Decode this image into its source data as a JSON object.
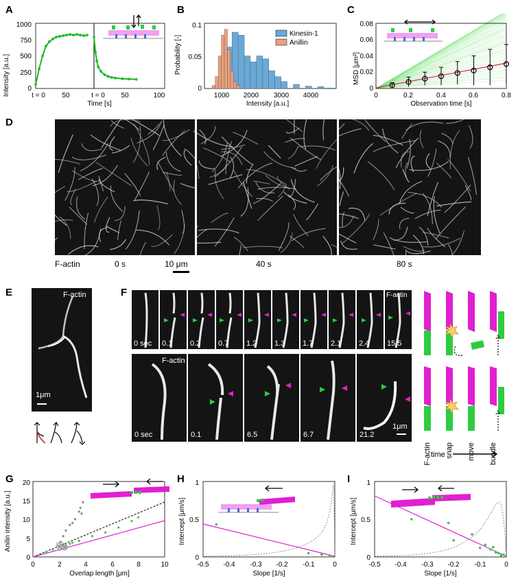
{
  "panel_letters": [
    "A",
    "B",
    "C",
    "D",
    "E",
    "F",
    "G",
    "H",
    "I"
  ],
  "colors": {
    "green": "#2ecc40",
    "magenta": "#e020d0",
    "blue": "#6aaad8",
    "salmon": "#e9a07f",
    "kinesin": "#3a78b0"
  },
  "panelA": {
    "ylabel": "Intensity [a.u.]",
    "xlabel": "Time [s]",
    "yticks": [
      "0",
      "250",
      "500",
      "750",
      "1000"
    ],
    "xticks": [
      "0",
      "50",
      "50",
      "100"
    ],
    "t0_left": "t = 0",
    "t0_right": "t = 0"
  },
  "panelB": {
    "ylabel": "Probability [-]",
    "xlabel": "Intensity [a.u.]",
    "yticks": [
      "0",
      "0.05",
      "0.1"
    ],
    "xticks": [
      "1000",
      "2000",
      "3000",
      "4000"
    ],
    "legend": [
      "Kinesin-1",
      "Anillin"
    ]
  },
  "panelC": {
    "ylabel": "MSD [μm²]",
    "xlabel": "Observation time [s]",
    "yticks": [
      "0",
      "0.02",
      "0.04",
      "0.06",
      "0.08"
    ],
    "xticks": [
      "0",
      "0.2",
      "0.4",
      "0.6",
      "0.8"
    ]
  },
  "panelD": {
    "label": "F-actin",
    "times": [
      "0 s",
      "40 s",
      "80 s"
    ],
    "scalebar": "10 μm"
  },
  "panelE": {
    "label": "F-actin",
    "scalebar": "1μm"
  },
  "panelF": {
    "label_top": "F-actin",
    "label_bottom": "F-actin",
    "top_times": [
      "0 sec",
      "0.1",
      "0.2",
      "0.7",
      "1.2",
      "1.3",
      "1.7",
      "2.1",
      "2.4",
      "15.5"
    ],
    "bottom_times": [
      "0 sec",
      "0.1",
      "6.5",
      "6.7",
      "21.2"
    ],
    "scalebar": "1μm",
    "steps": [
      "F-actin",
      "snap",
      "move",
      "bundle"
    ],
    "time_label": "time"
  },
  "panelG": {
    "ylabel": "Anilin intensity [a.u.]",
    "xlabel": "Overlap length [μm]",
    "yticks": [
      "0",
      "5",
      "10",
      "15",
      "20"
    ],
    "xticks": [
      "0",
      "2",
      "4",
      "6",
      "8",
      "10"
    ]
  },
  "panelH": {
    "ylabel": "Intercept [μm/s]",
    "xlabel": "Slope [1/s]",
    "yticks": [
      "0",
      "0.5",
      "1"
    ],
    "xticks": [
      "-0.5",
      "-0.4",
      "-0.3",
      "-0.2",
      "-0.1",
      "0"
    ]
  },
  "panelI": {
    "ylabel": "Intercept [μm/s]",
    "xlabel": "Slope [1/s]",
    "yticks": [
      "0",
      "0.5",
      "1"
    ],
    "xticks": [
      "-0.5",
      "-0.4",
      "-0.3",
      "-0.2",
      "-0.1",
      "0"
    ]
  },
  "chart_data": [
    {
      "type": "scatter",
      "panel": "A",
      "ylabel": "Intensity [a.u.]",
      "xlabel": "Time [s]",
      "ylim": [
        0,
        1000
      ],
      "series": [
        {
          "values": [
            [
              0,
              60
            ],
            [
              5,
              300
            ],
            [
              10,
              500
            ],
            [
              15,
              650
            ],
            [
              20,
              720
            ],
            [
              25,
              760
            ],
            [
              30,
              790
            ],
            [
              35,
              800
            ],
            [
              40,
              810
            ],
            [
              45,
              820
            ],
            [
              50,
              830
            ],
            [
              55,
              820
            ],
            [
              60,
              830
            ],
            [
              65,
              820
            ],
            [
              70,
              810
            ],
            [
              75,
              820
            ]
          ]
        },
        {
          "values": [
            [
              0,
              790
            ],
            [
              2,
              560
            ],
            [
              4,
              420
            ],
            [
              6,
              330
            ],
            [
              10,
              260
            ],
            [
              15,
              210
            ],
            [
              20,
              185
            ],
            [
              25,
              170
            ],
            [
              30,
              160
            ],
            [
              40,
              150
            ],
            [
              50,
              145
            ],
            [
              60,
              140
            ]
          ]
        }
      ]
    },
    {
      "type": "bar",
      "panel": "B",
      "ylabel": "Probability [-]",
      "xlabel": "Intensity [a.u.]",
      "ylim": [
        0,
        0.11
      ],
      "series": [
        {
          "name": "Kinesin-1",
          "values": [
            [
              800,
              0.005
            ],
            [
              1000,
              0.03
            ],
            [
              1200,
              0.07
            ],
            [
              1400,
              0.095
            ],
            [
              1600,
              0.09
            ],
            [
              1800,
              0.055
            ],
            [
              2000,
              0.045
            ],
            [
              2200,
              0.055
            ],
            [
              2400,
              0.05
            ],
            [
              2600,
              0.03
            ],
            [
              2800,
              0.02
            ],
            [
              3000,
              0.012
            ],
            [
              3400,
              0.007
            ],
            [
              3800,
              0.004
            ],
            [
              4200,
              0.003
            ],
            [
              4500,
              0.001
            ]
          ]
        },
        {
          "name": "Anillin",
          "values": [
            [
              700,
              0.005
            ],
            [
              800,
              0.02
            ],
            [
              900,
              0.055
            ],
            [
              1000,
              0.09
            ],
            [
              1100,
              0.1
            ],
            [
              1200,
              0.065
            ],
            [
              1300,
              0.03
            ],
            [
              1400,
              0.012
            ],
            [
              1500,
              0.005
            ]
          ]
        }
      ]
    },
    {
      "type": "line",
      "panel": "C",
      "ylabel": "MSD [μm²]",
      "xlabel": "Observation time [s]",
      "ylim": [
        0,
        0.08
      ],
      "x": [
        0.1,
        0.2,
        0.3,
        0.4,
        0.5,
        0.6,
        0.7,
        0.8
      ],
      "series": [
        {
          "values": [
            0.004,
            0.008,
            0.012,
            0.015,
            0.019,
            0.022,
            0.026,
            0.03
          ],
          "err": [
            0.003,
            0.006,
            0.008,
            0.011,
            0.014,
            0.018,
            0.022,
            0.024
          ]
        }
      ]
    },
    {
      "type": "scatter",
      "panel": "G",
      "ylabel": "Anilin intensity [a.u.]",
      "xlabel": "Overlap length [μm]",
      "ylim": [
        0,
        20
      ],
      "xlim": [
        0,
        10
      ],
      "series": [
        {
          "values": [
            [
              1.0,
              1.3
            ],
            [
              1.5,
              2.0
            ],
            [
              2.0,
              2.6
            ],
            [
              2.3,
              3.0
            ],
            [
              2.5,
              3.1
            ],
            [
              2.8,
              3.5
            ],
            [
              3.0,
              3.8
            ],
            [
              3.5,
              4.3
            ],
            [
              4.5,
              5.5
            ],
            [
              5.5,
              6.5
            ],
            [
              6.5,
              7.8
            ],
            [
              7.5,
              9.5
            ],
            [
              8.0,
              10.5
            ]
          ]
        },
        {
          "values": [
            [
              2.1,
              4.0
            ],
            [
              2.3,
              5.5
            ],
            [
              2.5,
              7.0
            ],
            [
              2.8,
              8.5
            ],
            [
              3.0,
              9.0
            ],
            [
              3.2,
              10.0
            ],
            [
              3.5,
              12.0
            ],
            [
              3.6,
              13.0
            ],
            [
              3.7,
              11.5
            ],
            [
              3.8,
              14.5
            ]
          ]
        }
      ]
    },
    {
      "type": "scatter",
      "panel": "H",
      "ylabel": "Intercept [μm/s]",
      "xlabel": "Slope [1/s]",
      "ylim": [
        0,
        1
      ],
      "xlim": [
        -0.5,
        0
      ],
      "series": [
        {
          "values": [
            [
              -0.45,
              0.43
            ],
            [
              -0.1,
              0.05
            ],
            [
              -0.05,
              0.03
            ],
            [
              -0.02,
              0.01
            ]
          ]
        }
      ]
    },
    {
      "type": "scatter",
      "panel": "I",
      "ylabel": "Intercept [μm/s]",
      "xlabel": "Slope [1/s]",
      "ylim": [
        0,
        1
      ],
      "xlim": [
        -0.5,
        0
      ],
      "series": [
        {
          "values": [
            [
              -0.36,
              0.5
            ],
            [
              -0.22,
              0.45
            ],
            [
              -0.2,
              0.22
            ],
            [
              -0.13,
              0.3
            ],
            [
              -0.1,
              0.12
            ],
            [
              -0.08,
              0.16
            ],
            [
              -0.06,
              0.1
            ],
            [
              -0.05,
              0.13
            ],
            [
              -0.04,
              0.06
            ],
            [
              -0.03,
              0.05
            ],
            [
              -0.02,
              0.02
            ],
            [
              -0.01,
              0.03
            ]
          ]
        }
      ]
    }
  ]
}
